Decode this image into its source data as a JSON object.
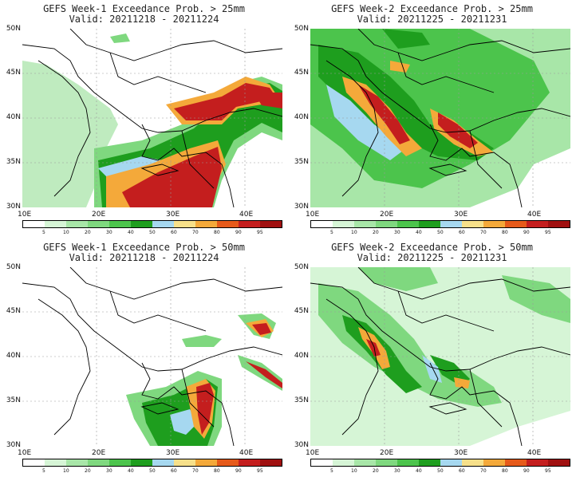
{
  "panels": [
    {
      "title": "GEFS Week-1 Exceedance Prob. > 25mm",
      "valid": "Valid: 20211218 - 20211224"
    },
    {
      "title": "GEFS Week-2 Exceedance Prob. > 25mm",
      "valid": "Valid: 20211225 - 20211231"
    },
    {
      "title": "GEFS Week-1 Exceedance Prob. > 50mm",
      "valid": "Valid: 20211218 - 20211224"
    },
    {
      "title": "GEFS Week-2 Exceedance Prob. > 50mm",
      "valid": "Valid: 20211225 - 20211231"
    }
  ],
  "lat_labels": [
    "50N",
    "45N",
    "40N",
    "35N",
    "30N"
  ],
  "lon_labels": [
    "10E",
    "20E",
    "30E",
    "40E"
  ],
  "colorbar": {
    "ticks": [
      "5",
      "10",
      "20",
      "30",
      "40",
      "50",
      "60",
      "70",
      "80",
      "90",
      "95"
    ],
    "colors": [
      "#ffffff",
      "#d6f5d6",
      "#a8e6a8",
      "#7fd87f",
      "#4cc44c",
      "#1e9e1e",
      "#a6d8f0",
      "#f7e08a",
      "#f4a93a",
      "#e65a1a",
      "#c41e1e",
      "#a01010"
    ]
  }
}
